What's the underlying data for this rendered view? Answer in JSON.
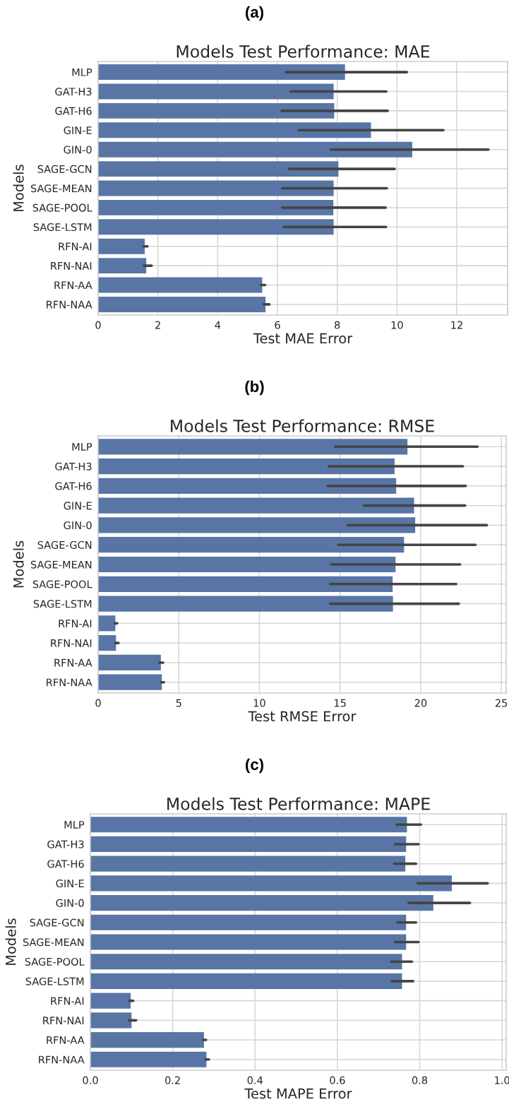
{
  "chart_data": [
    {
      "type": "bar",
      "orientation": "horizontal",
      "annotations": [
        "(a)"
      ],
      "title": "Models Test Performance: MAE",
      "xlabel": "Test MAE Error",
      "ylabel": "Models",
      "grid": true,
      "color": "#5875a6",
      "categories": [
        "MLP",
        "GAT-H3",
        "GAT-H6",
        "GIN-E",
        "GIN-0",
        "SAGE-GCN",
        "SAGE-MEAN",
        "SAGE-POOL",
        "SAGE-LSTM",
        "RFN-AI",
        "RFN-NAI",
        "RFN-AA",
        "RFN-NAA"
      ],
      "values": [
        8.26,
        7.88,
        7.9,
        9.13,
        10.51,
        8.04,
        7.88,
        7.87,
        7.88,
        1.56,
        1.61,
        5.49,
        5.6
      ],
      "errors": [
        [
          6.28,
          10.33
        ],
        [
          6.44,
          9.64
        ],
        [
          6.14,
          9.69
        ],
        [
          6.72,
          11.55
        ],
        [
          7.78,
          13.06
        ],
        [
          6.39,
          9.92
        ],
        [
          6.16,
          9.66
        ],
        [
          6.16,
          9.62
        ],
        [
          6.21,
          9.63
        ],
        [
          1.52,
          1.65
        ],
        [
          1.53,
          1.79
        ],
        [
          5.44,
          5.59
        ],
        [
          5.54,
          5.73
        ]
      ],
      "xlim": [
        0,
        13.7
      ],
      "xticks": [
        0,
        2,
        4,
        6,
        8,
        10,
        12
      ]
    },
    {
      "type": "bar",
      "orientation": "horizontal",
      "annotations": [
        "(b)"
      ],
      "title": "Models Test Performance: RMSE",
      "xlabel": "Test RMSE Error",
      "ylabel": "Models",
      "grid": true,
      "color": "#5875a6",
      "categories": [
        "MLP",
        "GAT-H3",
        "GAT-H6",
        "GIN-E",
        "GIN-0",
        "SAGE-GCN",
        "SAGE-MEAN",
        "SAGE-POOL",
        "SAGE-LSTM",
        "RFN-AI",
        "RFN-NAI",
        "RFN-AA",
        "RFN-NAA"
      ],
      "values": [
        19.18,
        18.38,
        18.48,
        19.59,
        19.66,
        18.97,
        18.44,
        18.26,
        18.28,
        1.07,
        1.11,
        3.89,
        3.95
      ],
      "errors": [
        [
          14.7,
          23.52
        ],
        [
          14.3,
          22.62
        ],
        [
          14.23,
          22.79
        ],
        [
          16.49,
          22.75
        ],
        [
          15.49,
          24.1
        ],
        [
          14.89,
          23.39
        ],
        [
          14.46,
          22.44
        ],
        [
          14.39,
          22.2
        ],
        [
          14.39,
          22.36
        ],
        [
          1.03,
          1.18
        ],
        [
          1.07,
          1.26
        ],
        [
          3.8,
          4.03
        ],
        [
          3.9,
          4.08
        ]
      ],
      "xlim": [
        0,
        25.3
      ],
      "xticks": [
        0,
        5,
        10,
        15,
        20,
        25
      ]
    },
    {
      "type": "bar",
      "orientation": "horizontal",
      "annotations": [
        "(c)"
      ],
      "title": "Models Test Performance: MAPE",
      "xlabel": "Test MAPE Error",
      "ylabel": "Models",
      "grid": true,
      "color": "#5875a6",
      "categories": [
        "MLP",
        "GAT-H3",
        "GAT-H6",
        "GIN-E",
        "GIN-0",
        "SAGE-GCN",
        "SAGE-MEAN",
        "SAGE-POOL",
        "SAGE-LSTM",
        "RFN-AI",
        "RFN-NAI",
        "RFN-AA",
        "RFN-NAA"
      ],
      "values": [
        0.769,
        0.767,
        0.765,
        0.878,
        0.833,
        0.767,
        0.767,
        0.757,
        0.757,
        0.098,
        0.1,
        0.276,
        0.282
      ],
      "errors": [
        [
          0.744,
          0.803
        ],
        [
          0.74,
          0.797
        ],
        [
          0.738,
          0.791
        ],
        [
          0.795,
          0.965
        ],
        [
          0.773,
          0.922
        ],
        [
          0.746,
          0.791
        ],
        [
          0.74,
          0.797
        ],
        [
          0.731,
          0.781
        ],
        [
          0.732,
          0.784
        ],
        [
          0.095,
          0.104
        ],
        [
          0.094,
          0.111
        ],
        [
          0.274,
          0.281
        ],
        [
          0.28,
          0.288
        ]
      ],
      "xlim": [
        0,
        1.01
      ],
      "xticks": [
        {
          "value": 0,
          "label": "0.0"
        },
        0.2,
        0.4,
        0.6,
        0.8,
        {
          "value": 1,
          "label": "1.0"
        }
      ]
    }
  ]
}
